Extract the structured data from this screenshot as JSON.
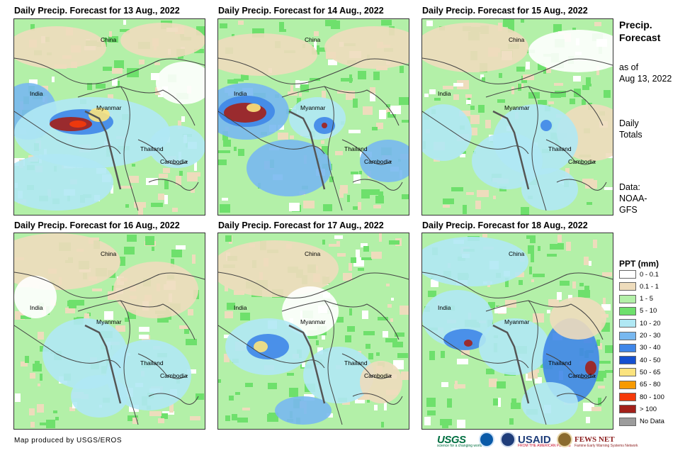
{
  "panels": [
    {
      "title": "Daily Precip. Forecast for 13 Aug., 2022",
      "labels": {
        "china": "China",
        "india": "India",
        "myanmar": "Myanmar",
        "thailand": "Thailand",
        "cambodia": "Cambodia"
      }
    },
    {
      "title": "Daily Precip. Forecast for 14 Aug., 2022",
      "labels": {
        "china": "China",
        "india": "India",
        "myanmar": "Myanmar",
        "thailand": "Thailand",
        "cambodia": "Cambodia"
      }
    },
    {
      "title": "Daily Precip. Forecast for 15 Aug., 2022",
      "labels": {
        "china": "China",
        "india": "India",
        "myanmar": "Myanmar",
        "thailand": "Thailand",
        "cambodia": "Cambodia"
      }
    },
    {
      "title": "Daily Precip. Forecast for 16 Aug., 2022",
      "labels": {
        "china": "China",
        "india": "India",
        "myanmar": "Myanmar",
        "thailand": "Thailand",
        "cambodia": "Cambodia"
      }
    },
    {
      "title": "Daily Precip. Forecast for 17 Aug., 2022",
      "labels": {
        "china": "China",
        "india": "India",
        "myanmar": "Myanmar",
        "thailand": "Thailand",
        "cambodia": "Cambodia"
      }
    },
    {
      "title": "Daily Precip. Forecast for 18 Aug., 2022",
      "labels": {
        "china": "China",
        "india": "India",
        "myanmar": "Myanmar",
        "thailand": "Thailand",
        "cambodia": "Cambodia"
      }
    }
  ],
  "sidebar": {
    "title_line1": "Precip.",
    "title_line2": "Forecast",
    "asof_line1": "as of",
    "asof_line2": "Aug 13, 2022",
    "daily_line1": "Daily",
    "daily_line2": "Totals",
    "data_line1": "Data:",
    "data_line2": "NOAA-",
    "data_line3": "GFS"
  },
  "legend": {
    "title": "PPT (mm)",
    "items": [
      {
        "label": "0 - 0.1",
        "color": "#ffffff"
      },
      {
        "label": "0.1 - 1",
        "color": "#eedcbc"
      },
      {
        "label": "1 - 5",
        "color": "#b3f0a8"
      },
      {
        "label": "5 - 10",
        "color": "#6ee06c"
      },
      {
        "label": "10 - 20",
        "color": "#b0e8f4"
      },
      {
        "label": "20 - 30",
        "color": "#78b8f0"
      },
      {
        "label": "30 - 40",
        "color": "#3f86e8"
      },
      {
        "label": "40 - 50",
        "color": "#1550d0"
      },
      {
        "label": "50 - 65",
        "color": "#fbe37e"
      },
      {
        "label": "65 - 80",
        "color": "#f79a00"
      },
      {
        "label": "80 - 100",
        "color": "#f53a0a"
      },
      {
        "label": "> 100",
        "color": "#a3201a"
      },
      {
        "label": "No Data",
        "color": "#9c9c9c"
      }
    ]
  },
  "credit": "Map produced by USGS/EROS",
  "logos": {
    "usgs": "USGS",
    "usgs_tagline": "science for a changing world",
    "usaid": "USAID",
    "usaid_tagline": "FROM THE AMERICAN PEOPLE",
    "fews": "FEWS NET",
    "fews_tagline": "Famine Early Warning Systems Network"
  }
}
